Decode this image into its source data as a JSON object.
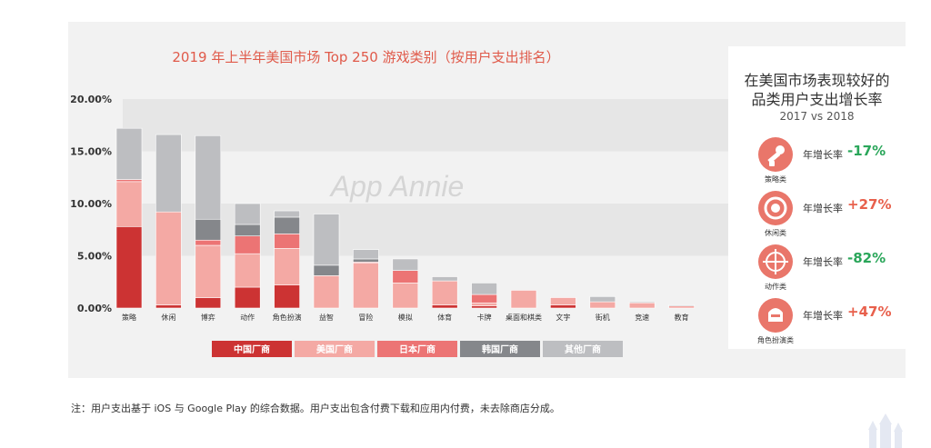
{
  "chart_data": {
    "type": "bar",
    "stacked": true,
    "title": "2019 年上半年美国市场 Top 250 游戏类别（按用户支出排名）",
    "categories": [
      "策略",
      "休闲",
      "博弈",
      "动作",
      "角色扮演",
      "益智",
      "冒险",
      "模拟",
      "体育",
      "卡牌",
      "桌面和棋类",
      "文字",
      "街机",
      "竞速",
      "教育"
    ],
    "ylim": [
      0,
      20
    ],
    "yticks": [
      "0.00%",
      "5.00%",
      "10.00%",
      "15.00%",
      "20.00%"
    ],
    "ytick_values": [
      0,
      5,
      10,
      15,
      20
    ],
    "watermark": "App Annie",
    "legend_position": "bottom",
    "series": [
      {
        "name": "中国厂商",
        "color": "#cc3333",
        "values": [
          7.8,
          0.3,
          1.0,
          2.0,
          2.2,
          0,
          0,
          0,
          0.3,
          0.2,
          0,
          0.3,
          0,
          0,
          0
        ]
      },
      {
        "name": "美国厂商",
        "color": "#f4a9a4",
        "values": [
          4.3,
          8.9,
          5.0,
          3.2,
          3.5,
          3.1,
          4.3,
          2.4,
          2.3,
          0.3,
          1.7,
          0.7,
          0.6,
          0.5,
          0.2
        ]
      },
      {
        "name": "日本厂商",
        "color": "#ec7474",
        "values": [
          0.2,
          0,
          0.5,
          1.7,
          1.4,
          0,
          0.1,
          1.2,
          0,
          0.8,
          0,
          0,
          0,
          0,
          0
        ]
      },
      {
        "name": "韩国厂商",
        "color": "#85878b",
        "values": [
          0,
          0,
          2.0,
          1.1,
          1.6,
          1.0,
          0.3,
          0,
          0,
          0,
          0,
          0,
          0,
          0,
          0
        ]
      },
      {
        "name": "其他厂商",
        "color": "#bdbec1",
        "values": [
          4.9,
          7.4,
          8.0,
          2.0,
          0.6,
          4.9,
          0.9,
          1.1,
          0.4,
          1.1,
          0,
          0,
          0.5,
          0.1,
          0.1
        ]
      }
    ]
  },
  "side": {
    "title_line1": "在美国市场表现较好的",
    "title_line2": "品类用户支出增长率",
    "subtitle": "2017 vs 2018",
    "items": [
      {
        "category": "策略类",
        "label": "年增长率",
        "value": "-17%",
        "color": "#2aa65a",
        "icon": "strategy-icon"
      },
      {
        "category": "休闲类",
        "label": "年增长率",
        "value": "+27%",
        "color": "#e8604c",
        "icon": "casual-icon"
      },
      {
        "category": "动作类",
        "label": "年增长率",
        "value": "-82%",
        "color": "#2aa65a",
        "icon": "action-icon"
      },
      {
        "category": "角色扮演类",
        "label": "年增长率",
        "value": "+47%",
        "color": "#e8604c",
        "icon": "rpg-icon"
      }
    ]
  },
  "footnote": "注：用户支出基于 iOS 与 Google Play 的综合数据。用户支出包含付费下载和应用内付费，未去除商店分成。"
}
